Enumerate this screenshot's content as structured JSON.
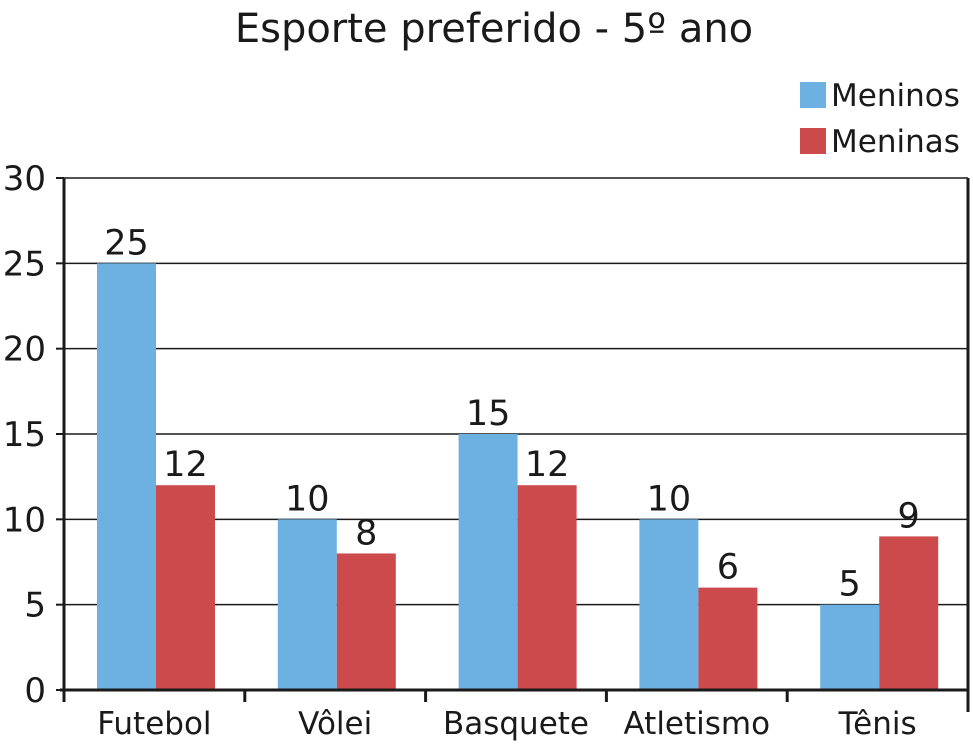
{
  "chart_data": {
    "type": "bar",
    "title": "Esporte preferido - 5º ano",
    "xlabel": "",
    "ylabel": "",
    "categories": [
      "Futebol",
      "Vôlei",
      "Basquete",
      "Atletismo",
      "Tênis"
    ],
    "series": [
      {
        "name": "Meninos",
        "color": "#6cb1e1",
        "values": [
          25,
          10,
          15,
          10,
          5
        ]
      },
      {
        "name": "Meninas",
        "color": "#cc4a4c",
        "values": [
          12,
          8,
          12,
          6,
          9
        ]
      }
    ],
    "ylim": [
      0,
      30
    ],
    "yticks": [
      "0",
      "5",
      "10",
      "15",
      "20",
      "25",
      "30"
    ],
    "grid": true,
    "legend": "top-right",
    "data_labels": true
  }
}
